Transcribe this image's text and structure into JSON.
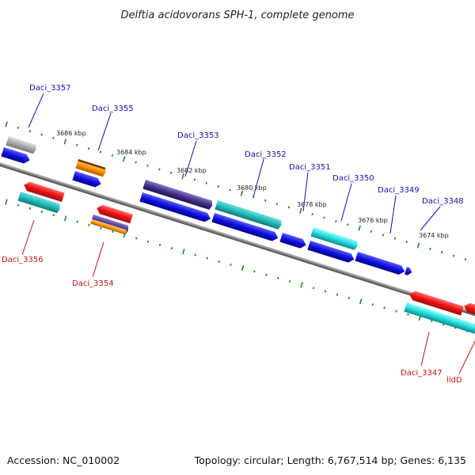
{
  "title": "Delftia acidovorans SPH-1, complete genome",
  "footer": {
    "accession": "Accession: NC_010002",
    "summary": "Topology: circular; Length: 6,767,514 bp; Genes: 6,135"
  },
  "ticks": [
    "3686 kbp",
    "3684 kbp",
    "3682 kbp",
    "3680 kbp",
    "3678 kbp",
    "3676 kbp",
    "3674 kbp"
  ],
  "genes_top": [
    "Daci_3357",
    "Daci_3355",
    "Daci_3353",
    "Daci_3352",
    "Daci_3351",
    "Daci_3350",
    "Daci_3349",
    "Daci_3348"
  ],
  "genes_bottom": [
    "Daci_3356",
    "Daci_3354",
    "Daci_3347",
    "lldD"
  ],
  "colors": {
    "cds": "#1010dd",
    "forward_red": "#ee1111",
    "cyan": "#11cccc",
    "gray": "#aaaaaa",
    "orange": "#ff9911",
    "navy": "#443388",
    "backbone": "#808080",
    "tick_green": "#228822",
    "label_top": "#1111aa",
    "label_bottom": "#cc1111"
  }
}
